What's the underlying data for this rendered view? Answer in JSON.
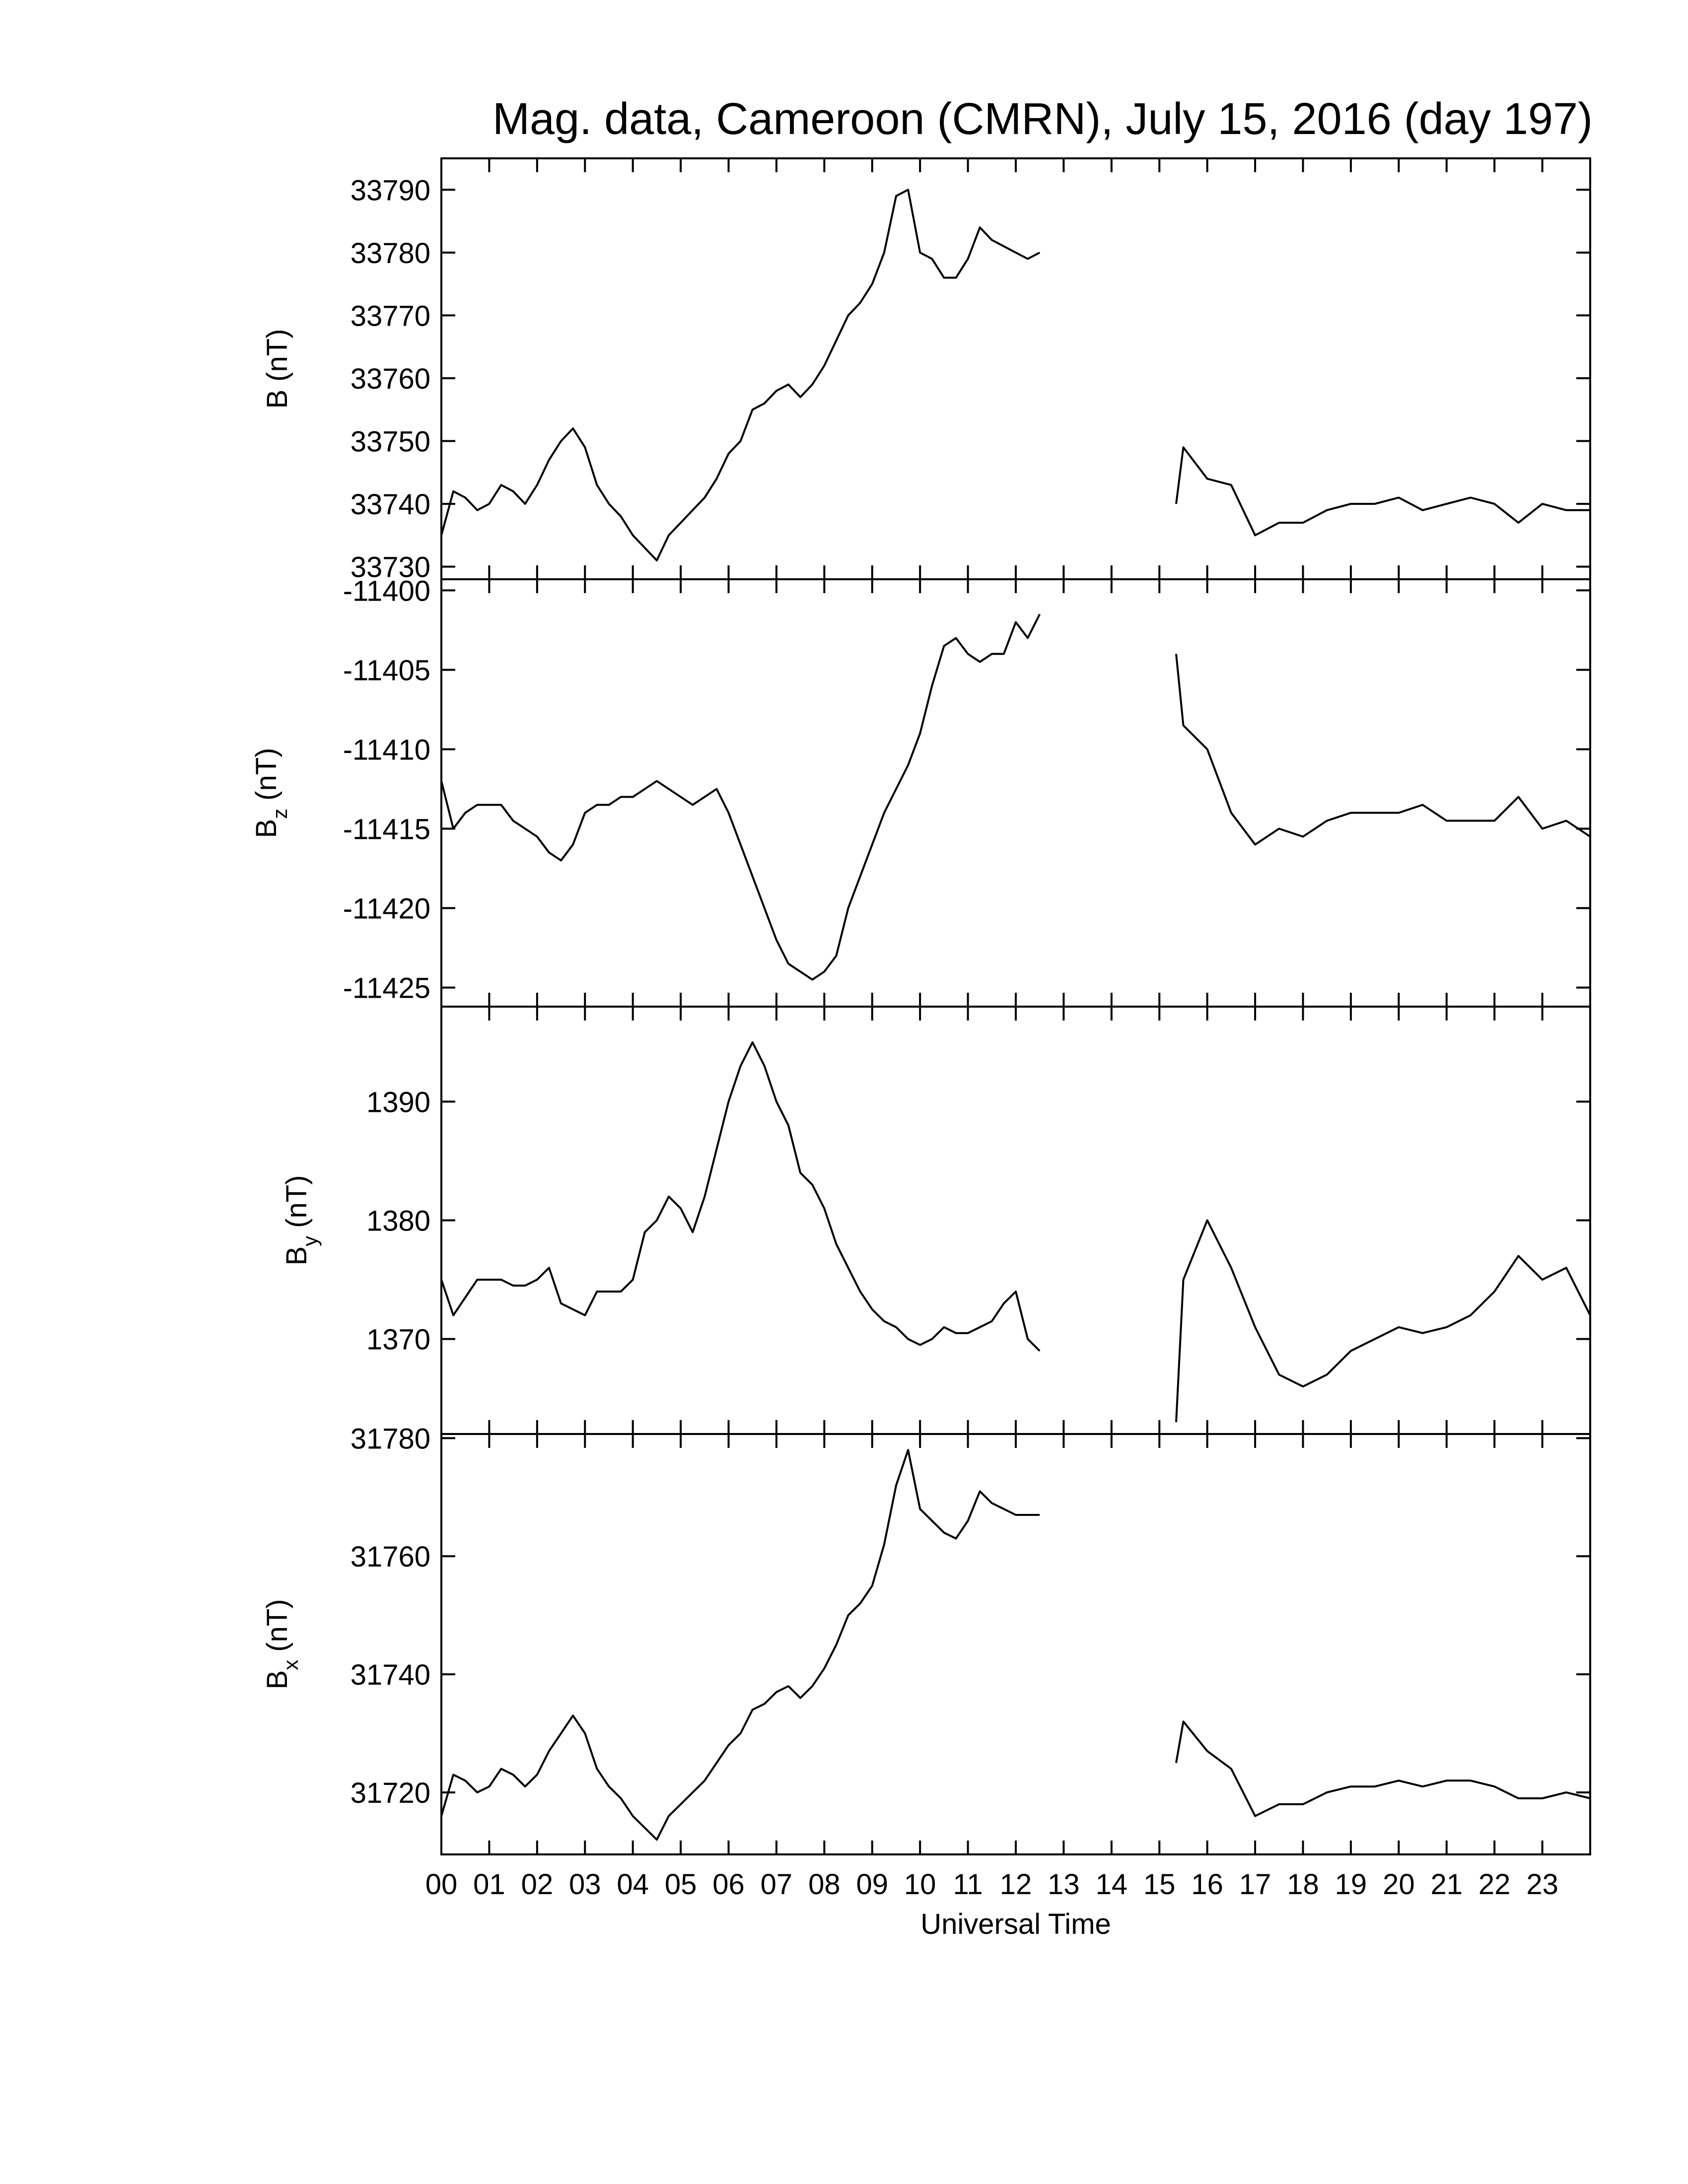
{
  "chart_data": [
    {
      "type": "line",
      "title": "Mag. data, Cameroon (CMRN), July 15, 2016 (day 197)",
      "ylabel": "B",
      "ylabel_unit": "(nT)",
      "color": "#000000",
      "xlim": [
        0,
        24
      ],
      "ylim": [
        33728,
        33795
      ],
      "yticks": [
        33730,
        33740,
        33750,
        33760,
        33770,
        33780,
        33790
      ],
      "x": [
        0,
        0.25,
        0.5,
        0.75,
        1,
        1.25,
        1.5,
        1.75,
        2,
        2.25,
        2.5,
        2.75,
        3,
        3.25,
        3.5,
        3.75,
        4,
        4.25,
        4.5,
        4.75,
        5,
        5.25,
        5.5,
        5.75,
        6,
        6.25,
        6.5,
        6.75,
        7,
        7.25,
        7.5,
        7.75,
        8,
        8.25,
        8.5,
        8.75,
        9,
        9.25,
        9.5,
        9.75,
        10,
        10.25,
        10.5,
        10.75,
        11,
        11.25,
        11.5,
        11.75,
        12,
        12.25,
        12.5,
        14,
        15.35,
        15.5,
        16,
        16.5,
        17,
        17.5,
        18,
        18.5,
        19,
        19.5,
        20,
        20.5,
        21,
        21.5,
        22,
        22.5,
        23,
        23.5,
        24
      ],
      "values": [
        33735,
        33742,
        33741,
        33739,
        33740,
        33743,
        33742,
        33740,
        33743,
        33747,
        33750,
        33752,
        33749,
        33743,
        33740,
        33738,
        33735,
        33733,
        33731,
        33735,
        33737,
        33739,
        33741,
        33744,
        33748,
        33750,
        33755,
        33756,
        33758,
        33759,
        33757,
        33759,
        33762,
        33766,
        33770,
        33772,
        33775,
        33780,
        33789,
        33790,
        33780,
        33779,
        33776,
        33776,
        33779,
        33784,
        33782,
        33781,
        33780,
        33779,
        33780,
        null,
        33740,
        33749,
        33744,
        33743,
        33735,
        33737,
        33737,
        33739,
        33740,
        33740,
        33741,
        33739,
        33740,
        33741,
        33740,
        33737,
        33740,
        33739,
        33739
      ]
    },
    {
      "type": "line",
      "ylabel": "B",
      "ylabel_sub": "z",
      "ylabel_unit": "(nT)",
      "color": "#000000",
      "xlim": [
        0,
        24
      ],
      "ylim": [
        -11426.2,
        -11399.3
      ],
      "yticks": [
        -11425,
        -11420,
        -11415,
        -11410,
        -11405,
        -11400
      ],
      "x": [
        0,
        0.25,
        0.5,
        0.75,
        1,
        1.25,
        1.5,
        1.75,
        2,
        2.25,
        2.5,
        2.75,
        3,
        3.25,
        3.5,
        3.75,
        4,
        4.25,
        4.5,
        4.75,
        5,
        5.25,
        5.5,
        5.75,
        6,
        6.25,
        6.5,
        6.75,
        7,
        7.25,
        7.5,
        7.75,
        8,
        8.25,
        8.5,
        8.75,
        9,
        9.25,
        9.5,
        9.75,
        10,
        10.25,
        10.5,
        10.75,
        11,
        11.25,
        11.5,
        11.75,
        12,
        12.25,
        12.5,
        14,
        15.35,
        15.5,
        16,
        16.5,
        17,
        17.5,
        18,
        18.5,
        19,
        19.5,
        20,
        20.5,
        21,
        21.5,
        22,
        22.5,
        23,
        23.5,
        24
      ],
      "values": [
        -11412,
        -11415,
        -11414,
        -11413.5,
        -11413.5,
        -11413.5,
        -11414.5,
        -11415,
        -11415.5,
        -11416.5,
        -11417,
        -11416,
        -11414,
        -11413.5,
        -11413.5,
        -11413,
        -11413,
        -11412.5,
        -11412,
        -11412.5,
        -11413,
        -11413.5,
        -11413,
        -11412.5,
        -11414,
        -11416,
        -11418,
        -11420,
        -11422,
        -11423.5,
        -11424,
        -11424.5,
        -11424,
        -11423,
        -11420,
        -11418,
        -11416,
        -11414,
        -11412.5,
        -11411,
        -11409,
        -11406,
        -11403.5,
        -11403,
        -11404,
        -11404.5,
        -11404,
        -11404,
        -11402,
        -11403,
        -11401.5,
        null,
        -11404,
        -11408.5,
        -11410,
        -11414,
        -11416,
        -11415,
        -11415.5,
        -11414.5,
        -11414,
        -11414,
        -11414,
        -11413.5,
        -11414.5,
        -11414.5,
        -11414.5,
        -11413,
        -11415,
        -11414.5,
        -11415.5
      ]
    },
    {
      "type": "line",
      "ylabel": "B",
      "ylabel_sub": "y",
      "ylabel_unit": "(nT)",
      "color": "#000000",
      "xlim": [
        0,
        24
      ],
      "ylim": [
        1362,
        1398
      ],
      "yticks": [
        1370,
        1380,
        1390
      ],
      "x": [
        0,
        0.25,
        0.5,
        0.75,
        1,
        1.25,
        1.5,
        1.75,
        2,
        2.25,
        2.5,
        2.75,
        3,
        3.25,
        3.5,
        3.75,
        4,
        4.25,
        4.5,
        4.75,
        5,
        5.25,
        5.5,
        5.75,
        6,
        6.25,
        6.5,
        6.75,
        7,
        7.25,
        7.5,
        7.75,
        8,
        8.25,
        8.5,
        8.75,
        9,
        9.25,
        9.5,
        9.75,
        10,
        10.25,
        10.5,
        10.75,
        11,
        11.25,
        11.5,
        11.75,
        12,
        12.25,
        12.5,
        14,
        15.35,
        15.5,
        16,
        16.5,
        17,
        17.5,
        18,
        18.5,
        19,
        19.5,
        20,
        20.5,
        21,
        21.5,
        22,
        22.5,
        23,
        23.5,
        24
      ],
      "values": [
        1375,
        1372,
        1373.5,
        1375,
        1375,
        1375,
        1374.5,
        1374.5,
        1375,
        1376,
        1373,
        1372.5,
        1372,
        1374,
        1374,
        1374,
        1375,
        1379,
        1380,
        1382,
        1381,
        1379,
        1382,
        1386,
        1390,
        1393,
        1395,
        1393,
        1390,
        1388,
        1384,
        1383,
        1381,
        1378,
        1376,
        1374,
        1372.5,
        1371.5,
        1371,
        1370,
        1369.5,
        1370,
        1371,
        1370.5,
        1370.5,
        1371,
        1371.5,
        1373,
        1374,
        1370,
        1369,
        null,
        1363,
        1375,
        1380,
        1376,
        1371,
        1367,
        1366,
        1367,
        1369,
        1370,
        1371,
        1370.5,
        1371,
        1372,
        1374,
        1377,
        1375,
        1376,
        1372
      ]
    },
    {
      "type": "line",
      "ylabel": "B",
      "ylabel_sub": "x",
      "ylabel_unit": "(nT)",
      "xlabel": "Universal Time",
      "color": "#000000",
      "xlim": [
        0,
        24
      ],
      "ylim": [
        31709.5,
        31780.7
      ],
      "yticks": [
        31720,
        31740,
        31760,
        31780
      ],
      "xticks": [
        {
          "value": 0,
          "label": "00"
        },
        {
          "value": 1,
          "label": "01"
        },
        {
          "value": 2,
          "label": "02"
        },
        {
          "value": 3,
          "label": "03"
        },
        {
          "value": 4,
          "label": "04"
        },
        {
          "value": 5,
          "label": "05"
        },
        {
          "value": 6,
          "label": "06"
        },
        {
          "value": 7,
          "label": "07"
        },
        {
          "value": 8,
          "label": "08"
        },
        {
          "value": 9,
          "label": "09"
        },
        {
          "value": 10,
          "label": "10"
        },
        {
          "value": 11,
          "label": "11"
        },
        {
          "value": 12,
          "label": "12"
        },
        {
          "value": 13,
          "label": "13"
        },
        {
          "value": 14,
          "label": "14"
        },
        {
          "value": 15,
          "label": "15"
        },
        {
          "value": 16,
          "label": "16"
        },
        {
          "value": 17,
          "label": "17"
        },
        {
          "value": 18,
          "label": "18"
        },
        {
          "value": 19,
          "label": "19"
        },
        {
          "value": 20,
          "label": "20"
        },
        {
          "value": 21,
          "label": "21"
        },
        {
          "value": 22,
          "label": "22"
        },
        {
          "value": 23,
          "label": "23"
        }
      ],
      "x": [
        0,
        0.25,
        0.5,
        0.75,
        1,
        1.25,
        1.5,
        1.75,
        2,
        2.25,
        2.5,
        2.75,
        3,
        3.25,
        3.5,
        3.75,
        4,
        4.25,
        4.5,
        4.75,
        5,
        5.25,
        5.5,
        5.75,
        6,
        6.25,
        6.5,
        6.75,
        7,
        7.25,
        7.5,
        7.75,
        8,
        8.25,
        8.5,
        8.75,
        9,
        9.25,
        9.5,
        9.75,
        10,
        10.25,
        10.5,
        10.75,
        11,
        11.25,
        11.5,
        11.75,
        12,
        12.25,
        12.5,
        14,
        15.35,
        15.5,
        16,
        16.5,
        17,
        17.5,
        18,
        18.5,
        19,
        19.5,
        20,
        20.5,
        21,
        21.5,
        22,
        22.5,
        23,
        23.5,
        24
      ],
      "values": [
        31716,
        31723,
        31722,
        31720,
        31721,
        31724,
        31723,
        31721,
        31723,
        31727,
        31730,
        31733,
        31730,
        31724,
        31721,
        31719,
        31716,
        31714,
        31712,
        31716,
        31718,
        31720,
        31722,
        31725,
        31728,
        31730,
        31734,
        31735,
        31737,
        31738,
        31736,
        31738,
        31741,
        31745,
        31750,
        31752,
        31755,
        31762,
        31772,
        31778,
        31768,
        31766,
        31764,
        31763,
        31766,
        31771,
        31769,
        31768,
        31767,
        31767,
        31767,
        null,
        31725,
        31732,
        31727,
        31724,
        31716,
        31718,
        31718,
        31720,
        31721,
        31721,
        31722,
        31721,
        31722,
        31722,
        31721,
        31719,
        31719,
        31720,
        31719
      ]
    }
  ]
}
